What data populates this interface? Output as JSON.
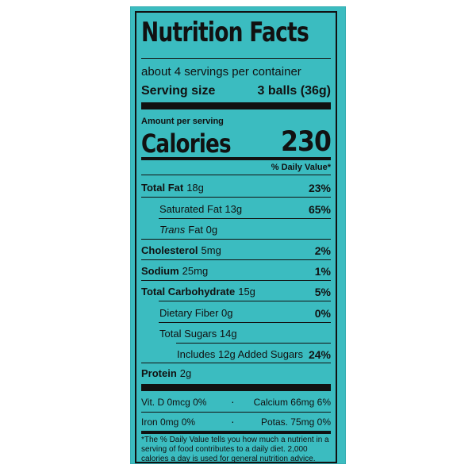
{
  "label": {
    "title": "Nutrition Facts",
    "servings_per_container": "about 4 servings per container",
    "serving_size_label": "Serving size",
    "serving_size_value": "3 balls (36g)",
    "amount_per_serving": "Amount per serving",
    "calories_label": "Calories",
    "calories_value": "230",
    "daily_value_header": "% Daily Value*",
    "nutrients": [
      {
        "name": "Total Fat",
        "amount": "18g",
        "percent": "23%"
      },
      {
        "name": "Saturated Fat 13g",
        "amount": "",
        "percent": "65%"
      },
      {
        "name": "Trans",
        "amount": "Fat 0g",
        "percent": ""
      },
      {
        "name": "Cholesterol",
        "amount": "5mg",
        "percent": "2%"
      },
      {
        "name": "Sodium",
        "amount": "25mg",
        "percent": "1%"
      },
      {
        "name": "Total Carbohydrate",
        "amount": "15g",
        "percent": "5%"
      },
      {
        "name": "Dietary Fiber 0g",
        "amount": "",
        "percent": "0%"
      },
      {
        "name": "Total Sugars 14g",
        "amount": "",
        "percent": ""
      },
      {
        "name": "Includes 12g Added Sugars",
        "amount": "",
        "percent": "24%"
      },
      {
        "name": "Protein",
        "amount": "2g",
        "percent": ""
      }
    ],
    "vitamins": [
      {
        "left": "Vit. D 0mcg 0%",
        "right": "Calcium 66mg 6%"
      },
      {
        "left": "Iron 0mg 0%",
        "right": "Potas. 75mg 0%"
      }
    ],
    "bullet": "·",
    "footnote": "*The % Daily Value tells you how much a nutrient in a serving of food contributes to a daily diet. 2,000 calories a day is used for general nutrition advice."
  },
  "colors": {
    "background": "#3bbcc0",
    "ink": "#111111"
  }
}
